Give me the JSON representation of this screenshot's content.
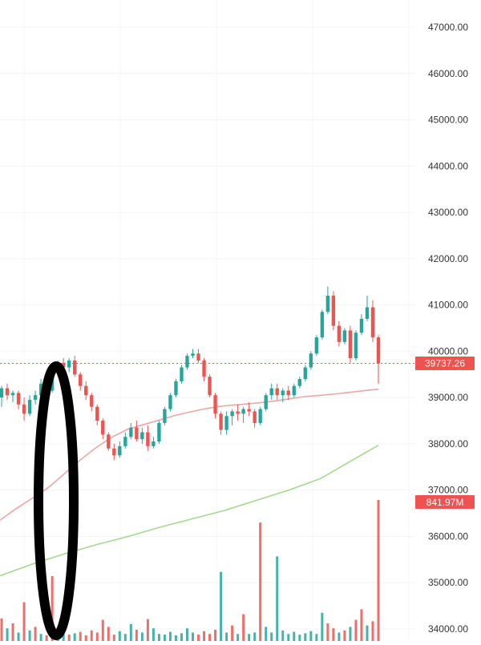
{
  "chart_data": {
    "type": "candlestick",
    "y_axis": {
      "ticks": [
        "34000.00",
        "35000.00",
        "36000.00",
        "37000.00",
        "38000.00",
        "39000.00",
        "40000.00",
        "41000.00",
        "42000.00",
        "43000.00",
        "44000.00",
        "45000.00",
        "46000.00",
        "47000.00"
      ],
      "range": [
        33750,
        47300
      ],
      "position": "right"
    },
    "grid": true,
    "price_marker": {
      "value": 39737.26,
      "label": "39737.26"
    },
    "volume_marker": {
      "label": "841.97M"
    },
    "ma_short": [
      [
        0,
        36350
      ],
      [
        20,
        36600
      ],
      [
        40,
        36820
      ],
      [
        60,
        37050
      ],
      [
        80,
        37350
      ],
      [
        100,
        37650
      ],
      [
        120,
        37920
      ],
      [
        140,
        38150
      ],
      [
        160,
        38320
      ],
      [
        180,
        38420
      ],
      [
        200,
        38520
      ],
      [
        220,
        38620
      ],
      [
        240,
        38700
      ],
      [
        260,
        38770
      ],
      [
        280,
        38820
      ],
      [
        300,
        38850
      ],
      [
        320,
        38880
      ],
      [
        340,
        38920
      ],
      [
        360,
        38970
      ],
      [
        380,
        39020
      ],
      [
        400,
        39050
      ],
      [
        420,
        39080
      ],
      [
        440,
        39120
      ],
      [
        460,
        39160
      ],
      [
        472,
        39180
      ]
    ],
    "ma_long": [
      [
        0,
        35150
      ],
      [
        40,
        35400
      ],
      [
        80,
        35620
      ],
      [
        120,
        35820
      ],
      [
        160,
        36000
      ],
      [
        200,
        36200
      ],
      [
        240,
        36380
      ],
      [
        280,
        36560
      ],
      [
        320,
        36780
      ],
      [
        360,
        37000
      ],
      [
        400,
        37250
      ],
      [
        420,
        37450
      ],
      [
        440,
        37650
      ],
      [
        460,
        37850
      ],
      [
        472,
        37970
      ]
    ],
    "candles": [
      [
        39000,
        39250,
        38800,
        39200
      ],
      [
        39200,
        39300,
        38950,
        39050
      ],
      [
        39050,
        39150,
        38900,
        39100
      ],
      [
        39100,
        39150,
        38750,
        38850
      ],
      [
        38850,
        39000,
        38500,
        38650
      ],
      [
        38650,
        39050,
        38600,
        38950
      ],
      [
        38950,
        39150,
        38850,
        39050
      ],
      [
        39050,
        39400,
        39000,
        39300
      ],
      [
        39300,
        39500,
        39100,
        39150
      ],
      [
        39150,
        39700,
        39100,
        39600
      ],
      [
        39600,
        39800,
        39450,
        39750
      ],
      [
        39750,
        39850,
        39600,
        39650
      ],
      [
        39650,
        39850,
        39550,
        39800
      ],
      [
        39800,
        39900,
        39450,
        39500
      ],
      [
        39500,
        39550,
        39150,
        39250
      ],
      [
        39250,
        39350,
        38950,
        39050
      ],
      [
        39050,
        39100,
        38700,
        38800
      ],
      [
        38800,
        38850,
        38400,
        38500
      ],
      [
        38500,
        38550,
        38100,
        38200
      ],
      [
        38200,
        38250,
        37850,
        37900
      ],
      [
        37900,
        38000,
        37650,
        37750
      ],
      [
        37750,
        38050,
        37700,
        37950
      ],
      [
        37950,
        38250,
        37900,
        38150
      ],
      [
        38150,
        38450,
        38100,
        38350
      ],
      [
        38350,
        38500,
        38050,
        38100
      ],
      [
        38100,
        38350,
        38000,
        38250
      ],
      [
        38250,
        38400,
        37850,
        37950
      ],
      [
        37950,
        38150,
        37900,
        38050
      ],
      [
        38050,
        38500,
        38000,
        38450
      ],
      [
        38450,
        38800,
        38400,
        38750
      ],
      [
        38750,
        39100,
        38700,
        39050
      ],
      [
        39050,
        39400,
        39000,
        39350
      ],
      [
        39350,
        39700,
        39300,
        39650
      ],
      [
        39650,
        39950,
        39600,
        39900
      ],
      [
        39900,
        40050,
        39850,
        39950
      ],
      [
        39950,
        40050,
        39750,
        39800
      ],
      [
        39800,
        39850,
        39350,
        39450
      ],
      [
        39450,
        39500,
        39000,
        39050
      ],
      [
        39050,
        39100,
        38550,
        38650
      ],
      [
        38650,
        38700,
        38200,
        38300
      ],
      [
        38300,
        38700,
        38200,
        38600
      ],
      [
        38600,
        38750,
        38400,
        38700
      ],
      [
        38700,
        38850,
        38500,
        38650
      ],
      [
        38650,
        38800,
        38450,
        38750
      ],
      [
        38750,
        38900,
        38600,
        38700
      ],
      [
        38700,
        38750,
        38350,
        38450
      ],
      [
        38450,
        38800,
        38400,
        38750
      ],
      [
        38750,
        39100,
        38700,
        39050
      ],
      [
        39050,
        39300,
        38950,
        39200
      ],
      [
        39200,
        39300,
        38950,
        39050
      ],
      [
        39050,
        39200,
        38900,
        39150
      ],
      [
        39150,
        39250,
        38950,
        39050
      ],
      [
        39050,
        39300,
        39000,
        39250
      ],
      [
        39250,
        39450,
        39200,
        39400
      ],
      [
        39400,
        39700,
        39350,
        39650
      ],
      [
        39650,
        40000,
        39600,
        39950
      ],
      [
        39950,
        40350,
        39900,
        40300
      ],
      [
        40300,
        40900,
        40250,
        40850
      ],
      [
        40850,
        41400,
        40800,
        41200
      ],
      [
        41200,
        41300,
        40450,
        40550
      ],
      [
        40550,
        40650,
        40100,
        40200
      ],
      [
        40200,
        40500,
        40150,
        40450
      ],
      [
        40450,
        40550,
        39750,
        39850
      ],
      [
        39850,
        40450,
        39800,
        40400
      ],
      [
        40400,
        40800,
        40350,
        40700
      ],
      [
        40700,
        41200,
        40650,
        40950
      ],
      [
        40950,
        41100,
        40200,
        40300
      ],
      [
        40300,
        40350,
        39300,
        39737
      ]
    ],
    "volume": [
      {
        "v": 0.32,
        "up": false
      },
      {
        "v": 0.18,
        "up": true
      },
      {
        "v": 0.25,
        "up": false
      },
      {
        "v": 0.12,
        "up": true
      },
      {
        "v": 0.55,
        "up": false
      },
      {
        "v": 0.15,
        "up": true
      },
      {
        "v": 0.2,
        "up": false
      },
      {
        "v": 0.1,
        "up": true
      },
      {
        "v": 0.08,
        "up": false
      },
      {
        "v": 0.92,
        "up": false
      },
      {
        "v": 0.14,
        "up": true
      },
      {
        "v": 0.1,
        "up": true
      },
      {
        "v": 0.09,
        "up": false
      },
      {
        "v": 0.11,
        "up": true
      },
      {
        "v": 0.13,
        "up": false
      },
      {
        "v": 0.08,
        "up": false
      },
      {
        "v": 0.15,
        "up": false
      },
      {
        "v": 0.12,
        "up": false
      },
      {
        "v": 0.3,
        "up": false
      },
      {
        "v": 0.2,
        "up": false
      },
      {
        "v": 0.09,
        "up": false
      },
      {
        "v": 0.14,
        "up": true
      },
      {
        "v": 0.1,
        "up": true
      },
      {
        "v": 0.24,
        "up": true
      },
      {
        "v": 0.16,
        "up": false
      },
      {
        "v": 0.12,
        "up": true
      },
      {
        "v": 0.31,
        "up": false
      },
      {
        "v": 0.18,
        "up": true
      },
      {
        "v": 0.1,
        "up": true
      },
      {
        "v": 0.09,
        "up": true
      },
      {
        "v": 0.13,
        "up": true
      },
      {
        "v": 0.08,
        "up": true
      },
      {
        "v": 0.11,
        "up": true
      },
      {
        "v": 0.18,
        "up": true
      },
      {
        "v": 0.12,
        "up": true
      },
      {
        "v": 0.09,
        "up": false
      },
      {
        "v": 0.14,
        "up": false
      },
      {
        "v": 0.1,
        "up": false
      },
      {
        "v": 0.16,
        "up": false
      },
      {
        "v": 0.98,
        "up": true
      },
      {
        "v": 0.12,
        "up": true
      },
      {
        "v": 0.22,
        "up": false
      },
      {
        "v": 0.1,
        "up": true
      },
      {
        "v": 0.38,
        "up": false
      },
      {
        "v": 0.1,
        "up": true
      },
      {
        "v": 0.12,
        "up": true
      },
      {
        "v": 1.68,
        "up": false
      },
      {
        "v": 0.2,
        "up": true
      },
      {
        "v": 0.12,
        "up": true
      },
      {
        "v": 1.2,
        "up": true
      },
      {
        "v": 0.15,
        "up": true
      },
      {
        "v": 0.1,
        "up": true
      },
      {
        "v": 0.13,
        "up": true
      },
      {
        "v": 0.09,
        "up": true
      },
      {
        "v": 0.11,
        "up": true
      },
      {
        "v": 0.14,
        "up": true
      },
      {
        "v": 0.1,
        "up": true
      },
      {
        "v": 0.4,
        "up": true
      },
      {
        "v": 0.25,
        "up": false
      },
      {
        "v": 0.18,
        "up": false
      },
      {
        "v": 0.12,
        "up": true
      },
      {
        "v": 0.15,
        "up": false
      },
      {
        "v": 0.2,
        "up": true
      },
      {
        "v": 0.3,
        "up": false
      },
      {
        "v": 0.45,
        "up": false
      },
      {
        "v": 0.22,
        "up": true
      },
      {
        "v": 0.28,
        "up": false
      },
      {
        "v": 2.0,
        "up": false
      }
    ],
    "colors": {
      "up": "#26a69a",
      "down": "#ef5350",
      "ma_short": "#e9a7a5",
      "ma_long": "#a5d88f",
      "grid": "#f3f4f6",
      "axis_text": "#333333",
      "marker_bg": "#ef5350",
      "marker_text": "#ffffff",
      "annotation": "#000000"
    }
  }
}
